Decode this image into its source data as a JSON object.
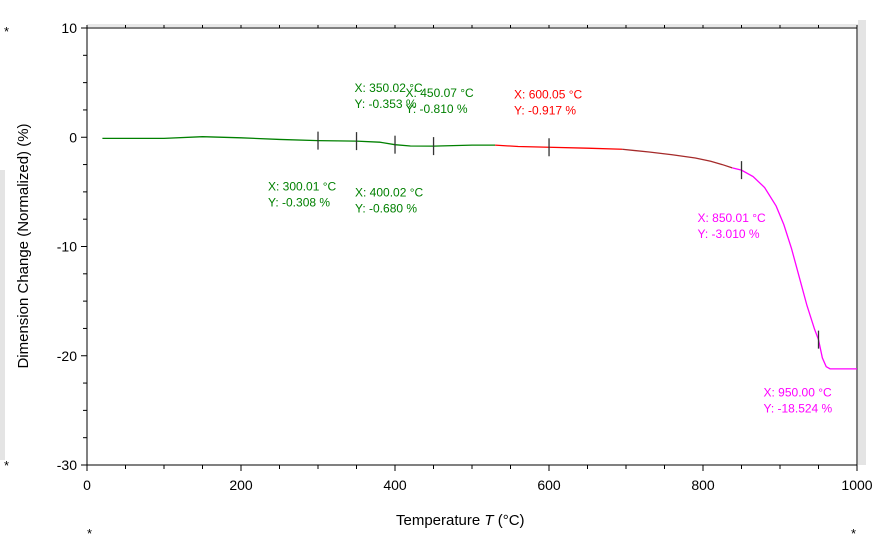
{
  "chart_data": {
    "type": "line",
    "xlabel": "Temperature",
    "xlabel_symbol": "T",
    "xlabel_unit": "(°C)",
    "ylabel": "Dimension Change (Normalized)  (%)",
    "xlim": [
      0,
      1000
    ],
    "ylim": [
      -30,
      10
    ],
    "x_ticks": [
      "0",
      "200",
      "400",
      "600",
      "800",
      "1000"
    ],
    "y_ticks": [
      "10",
      "0",
      "-10",
      "-20",
      "-30"
    ],
    "grid": false,
    "series": [
      {
        "color": "#008000",
        "x": [
          20,
          100,
          150,
          200,
          250,
          300,
          350,
          380,
          400,
          420,
          450,
          500,
          530
        ],
        "y": [
          -0.1,
          -0.1,
          0.05,
          -0.05,
          -0.2,
          -0.308,
          -0.353,
          -0.45,
          -0.68,
          -0.8,
          -0.81,
          -0.72,
          -0.72
        ]
      },
      {
        "color": "#ff0000",
        "x": [
          530,
          560,
          600,
          650,
          695
        ],
        "y": [
          -0.72,
          -0.85,
          -0.917,
          -1.0,
          -1.1
        ]
      },
      {
        "color": "#a52a2a",
        "x": [
          695,
          730,
          760,
          790,
          810,
          825,
          838
        ],
        "y": [
          -1.1,
          -1.35,
          -1.6,
          -1.9,
          -2.2,
          -2.5,
          -2.8
        ]
      },
      {
        "color": "#ff00ff",
        "x": [
          838,
          850,
          865,
          880,
          895,
          905,
          915,
          925,
          935,
          945,
          950,
          955,
          960,
          965,
          1000
        ],
        "y": [
          -2.8,
          -3.01,
          -3.6,
          -4.6,
          -6.3,
          -8.0,
          -10.2,
          -12.8,
          -15.4,
          -17.6,
          -18.524,
          -20.2,
          -21.0,
          -21.2,
          -21.2
        ]
      }
    ],
    "annotations": [
      {
        "x": 300.01,
        "y": -0.308,
        "label_x": "X: 300.01 °C",
        "label_y": "Y: -0.308 %",
        "color": "#008000"
      },
      {
        "x": 350.02,
        "y": -0.353,
        "label_x": "X: 350.02 °C",
        "label_y": "Y: -0.353 %",
        "color": "#008000"
      },
      {
        "x": 400.02,
        "y": -0.68,
        "label_x": "X: 400.02 °C",
        "label_y": "Y: -0.680 %",
        "color": "#008000"
      },
      {
        "x": 450.07,
        "y": -0.81,
        "label_x": "X: 450.07 °C",
        "label_y": "Y: -0.810 %",
        "color": "#008000"
      },
      {
        "x": 600.05,
        "y": -0.917,
        "label_x": "X: 600.05 °C",
        "label_y": "Y: -0.917 %",
        "color": "#ff0000"
      },
      {
        "x": 850.01,
        "y": -3.01,
        "label_x": "X: 850.01 °C",
        "label_y": "Y: -3.010 %",
        "color": "#ff00ff"
      },
      {
        "x": 950.0,
        "y": -18.524,
        "label_x": "X: 950.00 °C",
        "label_y": "Y: -18.524 %",
        "color": "#ff00ff"
      }
    ]
  }
}
